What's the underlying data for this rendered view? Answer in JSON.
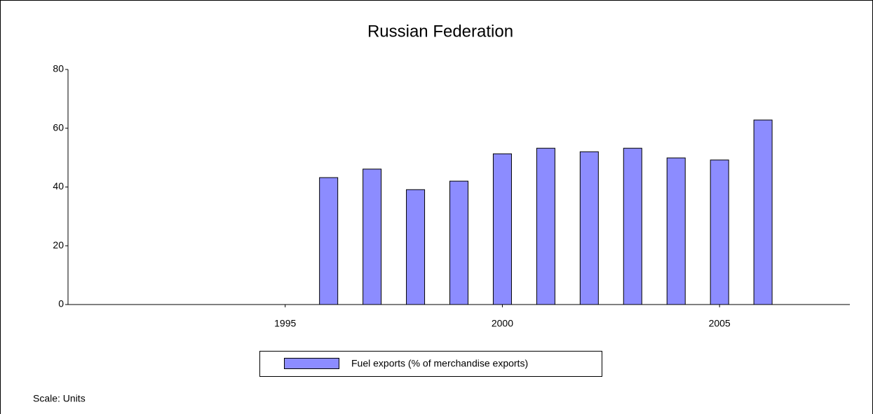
{
  "chart_data": {
    "type": "bar",
    "title": "Russian Federation",
    "x": [
      1996,
      1997,
      1998,
      1999,
      2000,
      2001,
      2002,
      2003,
      2004,
      2005,
      2006
    ],
    "series": [
      {
        "name": "Fuel exports (% of merchandise exports)",
        "color": "#8c8cff",
        "values": [
          43.2,
          46.1,
          39.1,
          42,
          51.3,
          53.2,
          52,
          53.2,
          49.9,
          49.2,
          62.8
        ]
      }
    ],
    "xlim": [
      1990,
      2008
    ],
    "xticks": [
      1995,
      2000,
      2005
    ],
    "ylim": [
      0,
      80
    ],
    "yticks": [
      0,
      20,
      40,
      60,
      80
    ],
    "note": "Scale: Units"
  }
}
